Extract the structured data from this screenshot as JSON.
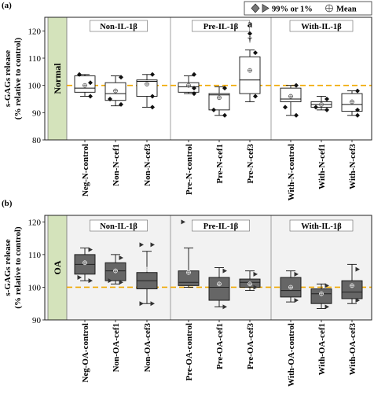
{
  "legend": {
    "extreme_label": "99% or 1%",
    "mean_label": "Mean",
    "position": "top-right"
  },
  "chart_data": [
    {
      "type": "box",
      "panel_label": "(a)",
      "side_label": "Normal",
      "ylabel": [
        "s-GAGs release",
        "(% relative to control)"
      ],
      "ylim": [
        80,
        125
      ],
      "yticks": [
        80,
        90,
        100,
        110,
        120
      ],
      "reference_line": 100,
      "groups": [
        {
          "label": "Non-IL-1β",
          "categories": [
            "Neg-N-control",
            "Non-N-cef1",
            "Non-N-cef3"
          ]
        },
        {
          "label": "Pre-IL-1β",
          "categories": [
            "Pre-N-control",
            "Pre-N-cef1",
            "Pre-N-cef3"
          ]
        },
        {
          "label": "With-IL-1β",
          "categories": [
            "With-N-control",
            "With-N-cef1",
            "With-N-cef3"
          ]
        }
      ],
      "boxes": [
        {
          "category": "Neg-N-control",
          "min": 96,
          "q1": 97.5,
          "median": 99,
          "q3": 103.5,
          "max": 104,
          "mean": 100,
          "extremes": [
            [
              -1,
              104
            ],
            [
              1,
              101
            ],
            [
              1,
              96
            ]
          ]
        },
        {
          "category": "Non-N-cef1",
          "min": 92.5,
          "q1": 94.5,
          "median": 97,
          "q3": 101,
          "max": 103.5,
          "mean": 98,
          "extremes": [
            [
              1,
              103
            ],
            [
              -1,
              95
            ],
            [
              1,
              93
            ]
          ]
        },
        {
          "category": "Non-N-cef3",
          "min": 92,
          "q1": 96,
          "median": 101.5,
          "q3": 102,
          "max": 104,
          "mean": 100.5,
          "extremes": [
            [
              1,
              104
            ],
            [
              1,
              96
            ],
            [
              1,
              92
            ]
          ]
        },
        {
          "category": "Pre-N-control",
          "min": 97,
          "q1": 97.5,
          "median": 99.5,
          "q3": 101,
          "max": 103.5,
          "mean": 100,
          "extremes": [
            [
              1,
              104
            ],
            [
              1,
              99
            ],
            [
              1,
              97
            ]
          ]
        },
        {
          "category": "Pre-N-cef1",
          "min": 89,
          "q1": 91,
          "median": 96.5,
          "q3": 97,
          "max": 99.5,
          "mean": 95.5,
          "extremes": [
            [
              1,
              99
            ],
            [
              -1,
              91
            ],
            [
              1,
              89
            ]
          ]
        },
        {
          "category": "Pre-N-cef3",
          "min": 94,
          "q1": 97,
          "median": 102,
          "q3": 110.5,
          "max": 113,
          "mean": 105.5,
          "extremes": [
            [
              0,
              119
            ],
            [
              1,
              112
            ],
            [
              1,
              96
            ]
          ]
        },
        {
          "category": "With-N-control",
          "min": 89,
          "q1": 94,
          "median": 95,
          "q3": 99,
          "max": 100,
          "mean": 96,
          "extremes": [
            [
              1,
              100
            ],
            [
              -1,
              92
            ],
            [
              1,
              89
            ]
          ]
        },
        {
          "category": "With-N-cef1",
          "min": 91,
          "q1": 92,
          "median": 93,
          "q3": 94,
          "max": 96,
          "mean": 93,
          "extremes": [
            [
              1,
              95
            ],
            [
              -1,
              92
            ],
            [
              1,
              91
            ]
          ]
        },
        {
          "category": "With-N-cef3",
          "min": 89,
          "q1": 90.5,
          "median": 93,
          "q3": 97,
          "max": 98,
          "mean": 94,
          "extremes": [
            [
              1,
              98
            ],
            [
              1,
              91
            ],
            [
              1,
              89
            ]
          ]
        }
      ],
      "annotations": [
        {
          "category": "Pre-N-cef3",
          "text": "a",
          "y": 122.5
        },
        {
          "category": "Pre-N-cef3",
          "text": "†",
          "y": 117
        }
      ]
    },
    {
      "type": "box",
      "panel_label": "(b)",
      "side_label": "OA",
      "ylabel": [
        "s-GAGs release",
        "(% relative to control)"
      ],
      "ylim": [
        90,
        122
      ],
      "yticks": [
        90,
        100,
        110,
        120
      ],
      "reference_line": 100,
      "groups": [
        {
          "label": "Non-IL-1β",
          "categories": [
            "Neg-OA-control",
            "Non-OA-cef1",
            "Non-OA-cef3"
          ]
        },
        {
          "label": "Pre-IL-1β",
          "categories": [
            "Pre-OA-control",
            "Pre-OA-cef1",
            "Pre-OA-cef3"
          ]
        },
        {
          "label": "With-IL-1β",
          "categories": [
            "With-OA-control",
            "With-OA-cef1",
            "With-OA-cef3"
          ]
        }
      ],
      "boxes": [
        {
          "category": "Neg-OA-control",
          "min": 102,
          "q1": 104,
          "median": 107,
          "q3": 110,
          "max": 112,
          "mean": 107.5,
          "extremes": [
            [
              1,
              111.5
            ],
            [
              1,
              102
            ],
            [
              -1,
              103
            ]
          ]
        },
        {
          "category": "Non-OA-cef1",
          "min": 101,
          "q1": 102,
          "median": 105,
          "q3": 107.5,
          "max": 110,
          "mean": 105,
          "extremes": [
            [
              1,
              109
            ],
            [
              1,
              101.5
            ],
            [
              -1,
              102
            ]
          ]
        },
        {
          "category": "Non-OA-cef3",
          "min": 95,
          "q1": 99.5,
          "median": 102,
          "q3": 104.5,
          "max": 111,
          "mean": 105.5,
          "extremes": [
            [
              -1,
              113
            ],
            [
              1,
              113
            ],
            [
              -1,
              95
            ],
            [
              1,
              95
            ]
          ]
        },
        {
          "category": "Pre-OA-control",
          "min": 100,
          "q1": 100.5,
          "median": 101.5,
          "q3": 105,
          "max": 112,
          "mean": 104.5,
          "extremes": [
            [
              -1,
              120
            ]
          ]
        },
        {
          "category": "Pre-OA-cef1",
          "min": 94,
          "q1": 96,
          "median": 100,
          "q3": 103,
          "max": 106,
          "mean": 101,
          "extremes": [
            [
              1,
              105
            ],
            [
              1,
              94
            ]
          ]
        },
        {
          "category": "Pre-OA-cef3",
          "min": 99,
          "q1": 100,
          "median": 101.5,
          "q3": 102.5,
          "max": 105,
          "mean": 101,
          "extremes": [
            [
              1,
              104
            ],
            [
              1,
              100
            ]
          ]
        },
        {
          "category": "With-OA-control",
          "min": 95.5,
          "q1": 97,
          "median": 99,
          "q3": 103,
          "max": 105,
          "mean": 100,
          "extremes": [
            [
              1,
              104
            ],
            [
              1,
              96
            ]
          ]
        },
        {
          "category": "With-OA-cef1",
          "min": 93.5,
          "q1": 95,
          "median": 98,
          "q3": 99.5,
          "max": 101,
          "mean": 98,
          "extremes": [
            [
              1,
              100.5
            ],
            [
              1,
              94
            ]
          ]
        },
        {
          "category": "With-OA-cef3",
          "min": 95,
          "q1": 96.5,
          "median": 98.5,
          "q3": 102,
          "max": 107,
          "mean": 100.5,
          "extremes": [
            [
              1,
              105.5
            ],
            [
              1,
              96
            ]
          ]
        }
      ],
      "annotations": []
    }
  ]
}
